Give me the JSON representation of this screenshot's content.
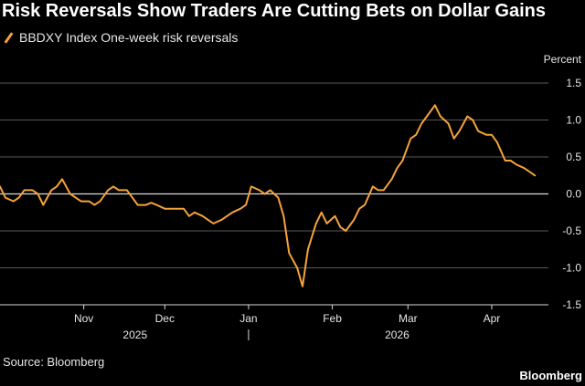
{
  "chart_data": {
    "type": "line",
    "title": "Risk Reversals Show Traders Are Cutting Bets on Dollar Gains",
    "legend": "BBDXY Index One-week risk reversals",
    "ylabel": "Percent",
    "ylim": [
      -1.5,
      1.5
    ],
    "yticks": [
      1.5,
      1.0,
      0.5,
      0.0,
      -0.5,
      -1.0,
      -1.5
    ],
    "ytick_labels": [
      "1.5",
      "1.0",
      "0.5",
      "0.0",
      "-0.5",
      "-1.0",
      "-1.5"
    ],
    "xlim": [
      "2025-10-01",
      "2026-04-22"
    ],
    "month_ticks": [
      "2025-11-01",
      "2025-12-01",
      "2026-01-01",
      "2026-02-01",
      "2026-03-01",
      "2026-04-01"
    ],
    "month_labels": [
      "Nov",
      "Dec",
      "Jan",
      "Feb",
      "Mar",
      "Apr"
    ],
    "year_labels": [
      "2025",
      "2026"
    ],
    "grid": true,
    "line_color": "#f5a33b",
    "series": [
      {
        "name": "BBDXY Index One-week risk reversals",
        "x": [
          "2025-10-01",
          "2025-10-03",
          "2025-10-06",
          "2025-10-08",
          "2025-10-10",
          "2025-10-13",
          "2025-10-15",
          "2025-10-17",
          "2025-10-20",
          "2025-10-22",
          "2025-10-24",
          "2025-10-27",
          "2025-10-29",
          "2025-10-31",
          "2025-11-03",
          "2025-11-05",
          "2025-11-07",
          "2025-11-10",
          "2025-11-12",
          "2025-11-14",
          "2025-11-17",
          "2025-11-19",
          "2025-11-21",
          "2025-11-24",
          "2025-11-26",
          "2025-11-28",
          "2025-12-01",
          "2025-12-03",
          "2025-12-05",
          "2025-12-08",
          "2025-12-10",
          "2025-12-12",
          "2025-12-15",
          "2025-12-17",
          "2025-12-19",
          "2025-12-22",
          "2025-12-24",
          "2025-12-26",
          "2025-12-29",
          "2025-12-31",
          "2026-01-02",
          "2026-01-05",
          "2026-01-07",
          "2026-01-09",
          "2026-01-12",
          "2026-01-14",
          "2026-01-16",
          "2026-01-19",
          "2026-01-21",
          "2026-01-23",
          "2026-01-26",
          "2026-01-28",
          "2026-01-30",
          "2026-02-02",
          "2026-02-04",
          "2026-02-06",
          "2026-02-09",
          "2026-02-11",
          "2026-02-13",
          "2026-02-16",
          "2026-02-18",
          "2026-02-20",
          "2026-02-23",
          "2026-02-25",
          "2026-02-27",
          "2026-03-02",
          "2026-03-04",
          "2026-03-06",
          "2026-03-09",
          "2026-03-11",
          "2026-03-13",
          "2026-03-16",
          "2026-03-18",
          "2026-03-20",
          "2026-03-23",
          "2026-03-25",
          "2026-03-27",
          "2026-03-30",
          "2026-04-01",
          "2026-04-03",
          "2026-04-06",
          "2026-04-08",
          "2026-04-10",
          "2026-04-13",
          "2026-04-15",
          "2026-04-17"
        ],
        "values": [
          0.1,
          -0.05,
          -0.1,
          -0.05,
          0.05,
          0.05,
          0.0,
          -0.15,
          0.05,
          0.1,
          0.2,
          0.0,
          -0.05,
          -0.1,
          -0.1,
          -0.15,
          -0.1,
          0.05,
          0.1,
          0.05,
          0.05,
          -0.05,
          -0.15,
          -0.15,
          -0.12,
          -0.15,
          -0.2,
          -0.2,
          -0.2,
          -0.2,
          -0.3,
          -0.25,
          -0.3,
          -0.35,
          -0.4,
          -0.35,
          -0.3,
          -0.25,
          -0.2,
          -0.15,
          0.1,
          0.05,
          0.0,
          0.05,
          -0.05,
          -0.3,
          -0.8,
          -1.0,
          -1.25,
          -0.75,
          -0.4,
          -0.25,
          -0.4,
          -0.3,
          -0.45,
          -0.5,
          -0.35,
          -0.2,
          -0.15,
          0.1,
          0.05,
          0.05,
          0.2,
          0.35,
          0.45,
          0.75,
          0.8,
          0.95,
          1.1,
          1.2,
          1.05,
          0.95,
          0.75,
          0.85,
          1.05,
          1.0,
          0.85,
          0.8,
          0.8,
          0.7,
          0.45,
          0.45,
          0.4,
          0.35,
          0.3,
          0.25
        ]
      }
    ]
  },
  "footer": {
    "source": "Source: Bloomberg",
    "brand": "Bloomberg"
  }
}
